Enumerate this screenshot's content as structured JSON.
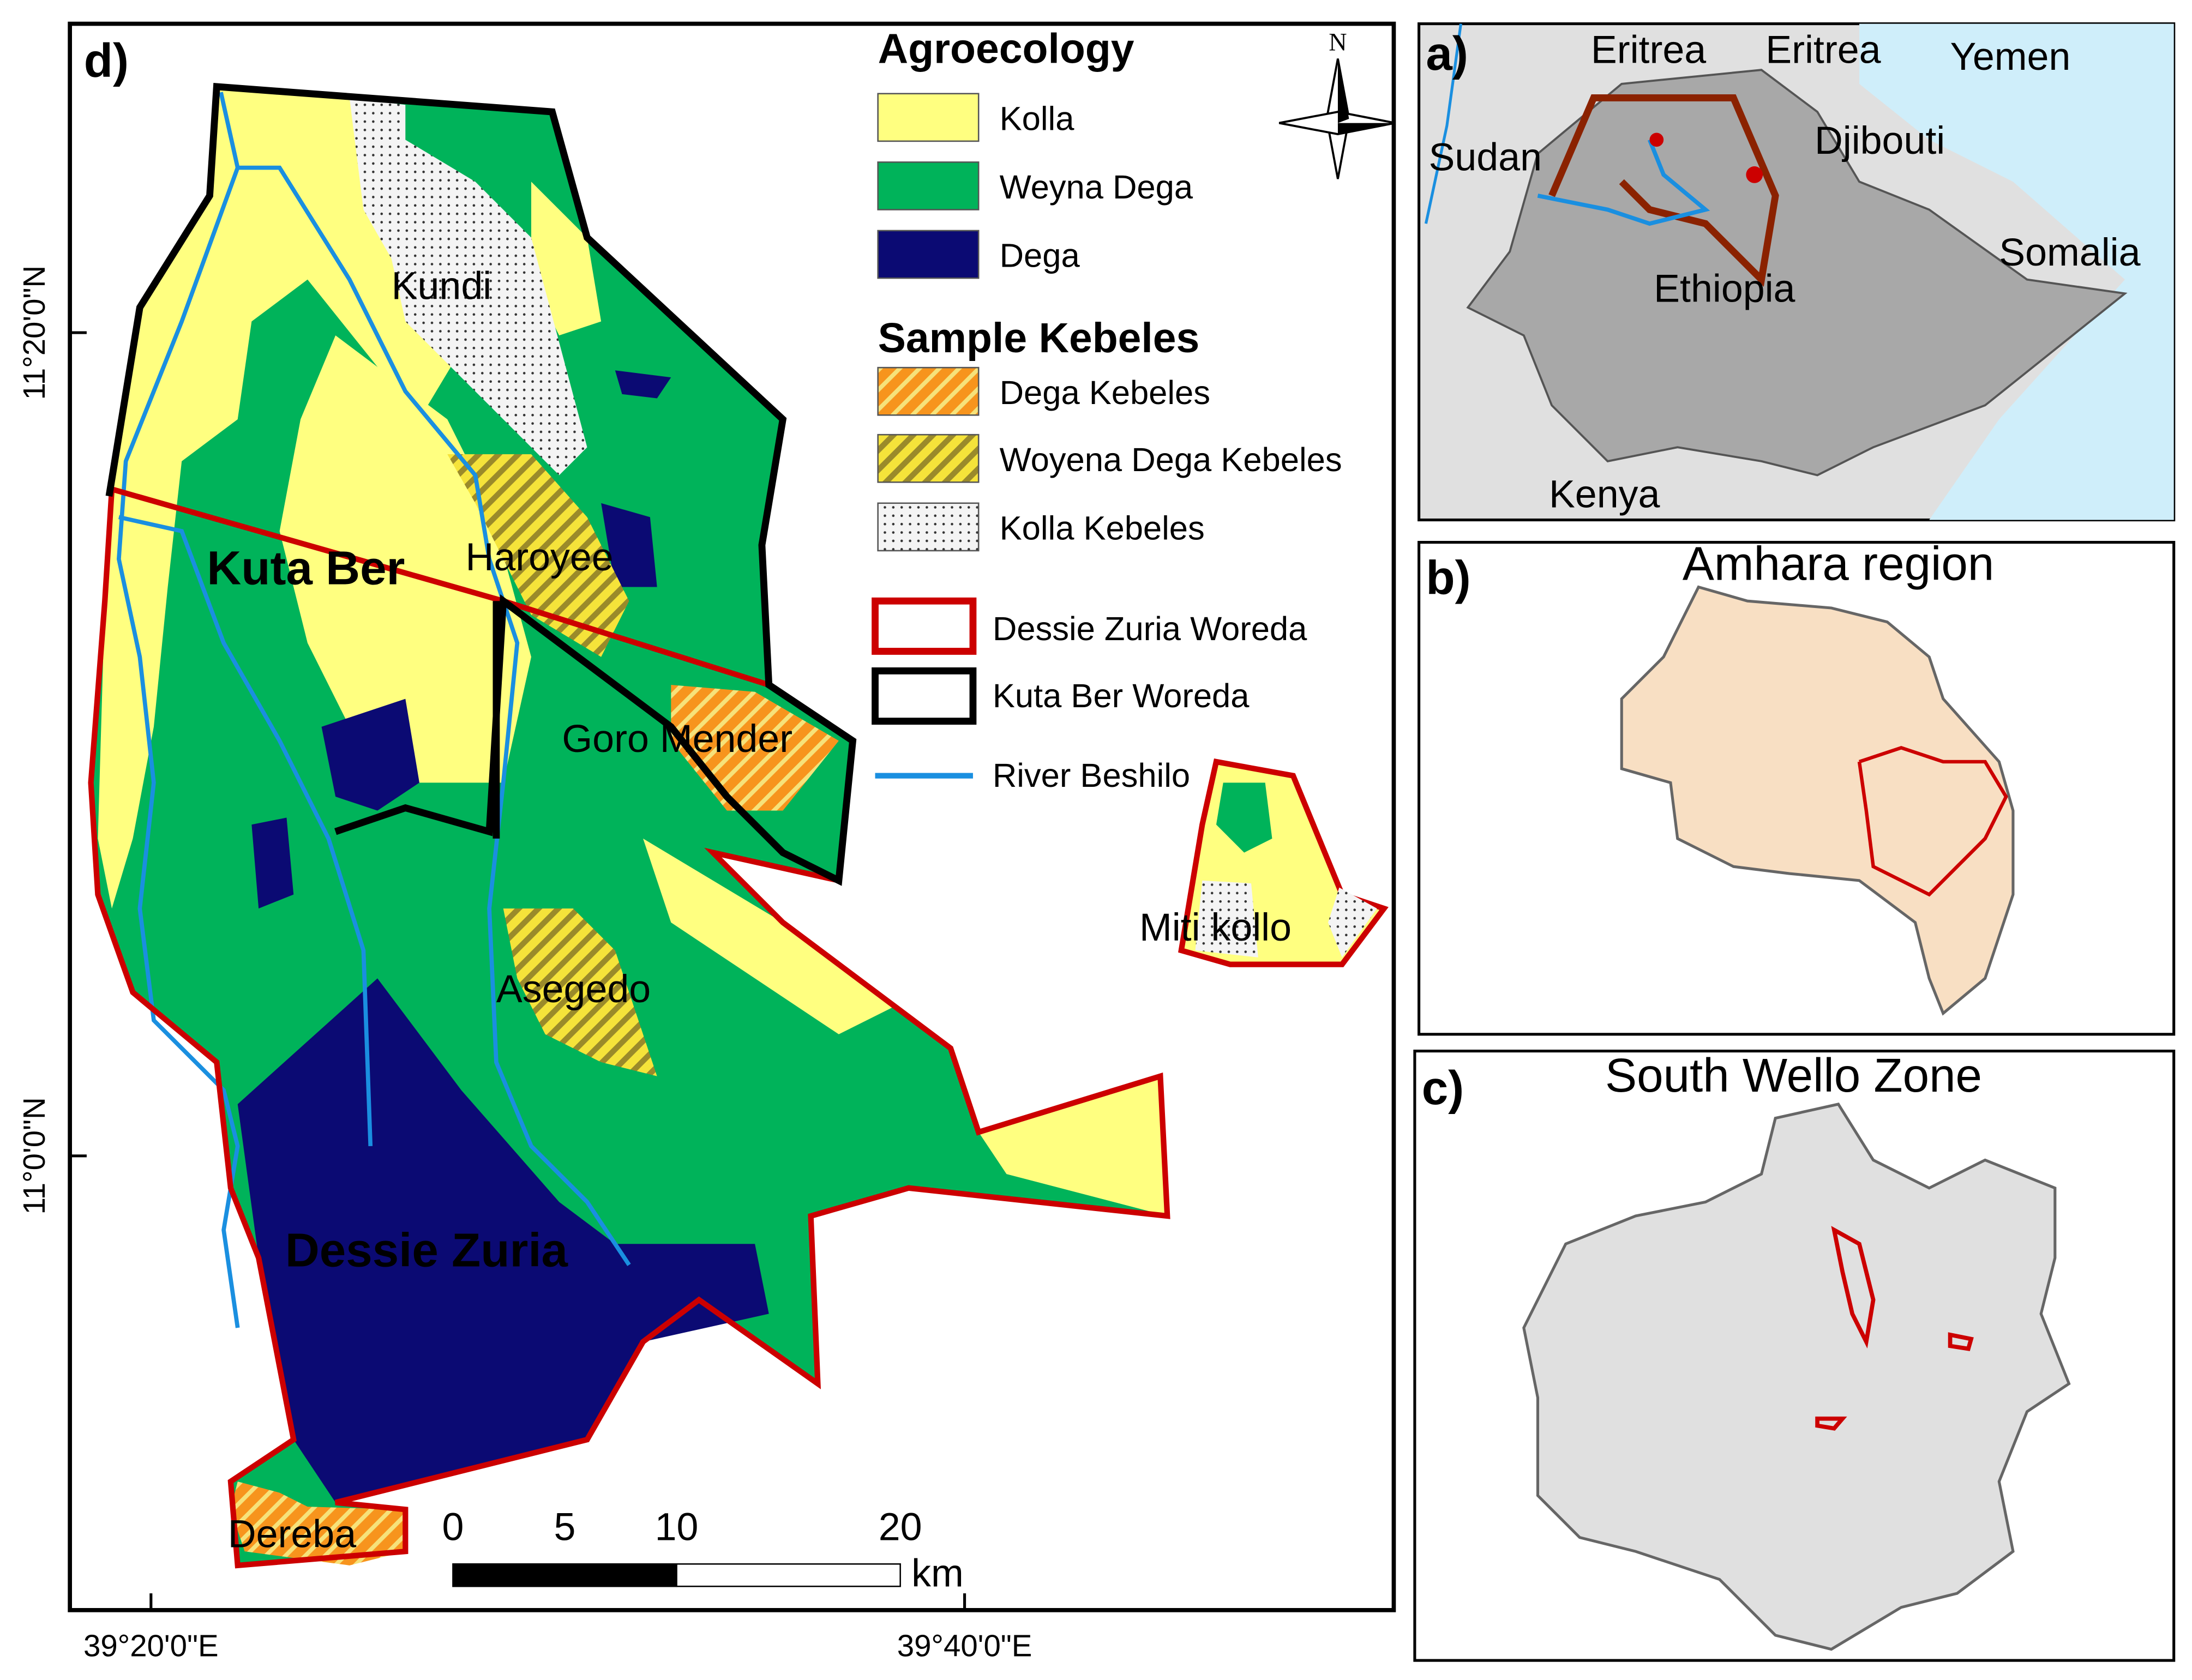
{
  "panels": {
    "d": {
      "label": "d)",
      "places": [
        "Kundi",
        "Haroyee",
        "Kuta Ber",
        "Goro Mender",
        "Miti kollo",
        "Asegedo",
        "Dessie Zuria",
        "Dereba"
      ],
      "lat_labels": [
        "11°20'0\"N",
        "11°0'0\"N"
      ],
      "lon_labels": [
        "39°20'0\"E",
        "39°40'0\"E"
      ],
      "scale_bar": {
        "ticks": [
          "0",
          "5",
          "10",
          "20"
        ],
        "unit": "km"
      },
      "north": "N"
    },
    "a": {
      "label": "a)",
      "places": [
        "Eritrea",
        "Eritrea",
        "Yemen",
        "Sudan",
        "Djibouti",
        "Somalia",
        "Ethiopia",
        "Kenya"
      ]
    },
    "b": {
      "label": "b)",
      "title": "Amhara region"
    },
    "c": {
      "label": "c)",
      "title": "South Wello Zone"
    }
  },
  "legend": {
    "sections": [
      {
        "title": "Agroecology",
        "items": [
          "Kolla",
          "Weyna Dega",
          "Dega"
        ]
      },
      {
        "title": "Sample Kebeles",
        "items": [
          "Dega Kebeles",
          "Woyena Dega Kebeles",
          "Kolla Kebeles"
        ]
      }
    ],
    "boundaries": [
      "Dessie Zuria Woreda",
      "Kuta Ber Woreda",
      "River Beshilo"
    ]
  }
}
